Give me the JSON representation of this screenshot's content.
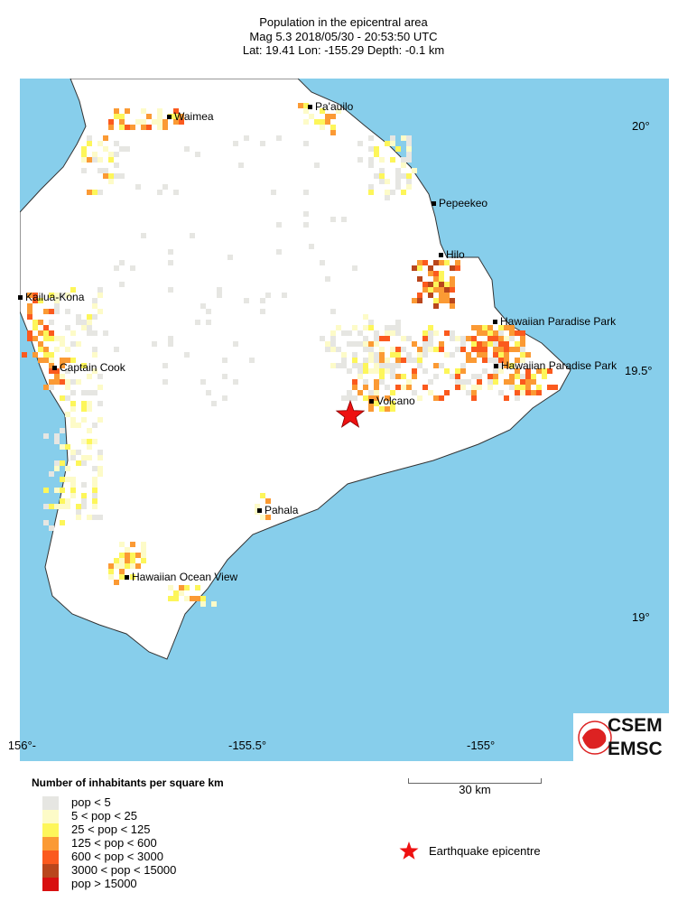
{
  "header": {
    "title": "Population in the epicentral area",
    "line2": "Mag 5.3  2018/05/30 - 20:53:50 UTC",
    "line3": "Lat: 19.41    Lon: -155.29     Depth:  -0.1 km"
  },
  "axes": {
    "lon_labels": [
      "-156°",
      "-155.5°",
      "-155°"
    ],
    "lat_labels": [
      "20°",
      "19.5°",
      "19°"
    ]
  },
  "colors": {
    "sea": "#87ceeb",
    "land": "#ffffff",
    "epicentre": "#ee1111"
  },
  "cities": [
    {
      "name": "Waimea"
    },
    {
      "name": "Pa'auilo"
    },
    {
      "name": "Pepeekeo"
    },
    {
      "name": "Hilo"
    },
    {
      "name": "Kailua-Kona"
    },
    {
      "name": "Hawaiian Paradise Park"
    },
    {
      "name": "Hawaiian Paradise Park"
    },
    {
      "name": "Captain Cook"
    },
    {
      "name": "Volcano"
    },
    {
      "name": "Pahala"
    },
    {
      "name": "Hawaiian Ocean View"
    }
  ],
  "logo": {
    "text1": "CSEM",
    "text2": "EMSC"
  },
  "scale": {
    "label": "30 km"
  },
  "legend": {
    "title": "Number of inhabitants per square km",
    "items": [
      {
        "label": "pop < 5",
        "color": "#e6e6e2"
      },
      {
        "label": "5 < pop < 25",
        "color": "#fdfbc8"
      },
      {
        "label": "25 < pop < 125",
        "color": "#fdf65a"
      },
      {
        "label": "125 < pop < 600",
        "color": "#fb9a34"
      },
      {
        "label": "600 < pop < 3000",
        "color": "#fb5a1e"
      },
      {
        "label": "3000 < pop < 15000",
        "color": "#b9461c"
      },
      {
        "label": "pop > 15000",
        "color": "#d81010"
      }
    ]
  },
  "epicentre_legend": {
    "label": "Earthquake epicentre"
  }
}
